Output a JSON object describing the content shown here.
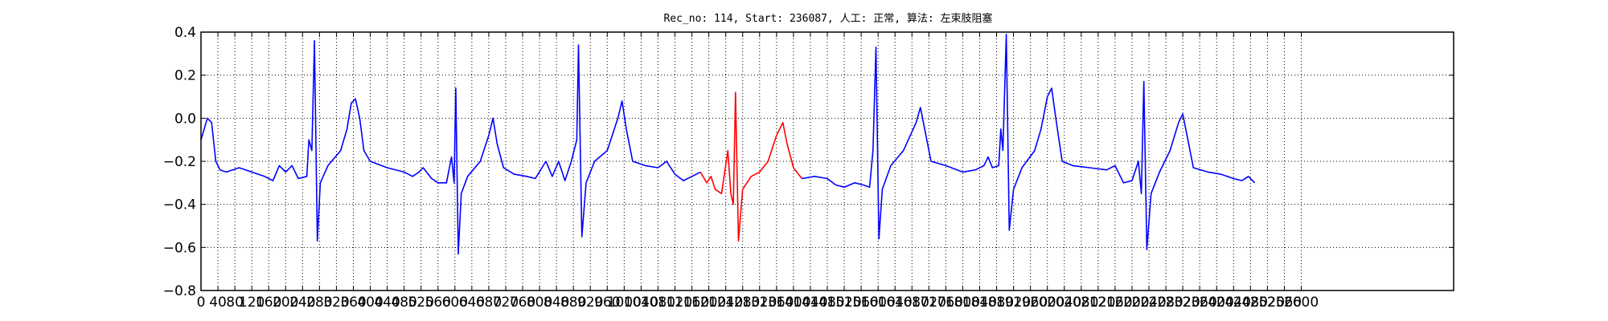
{
  "chart_data": {
    "type": "line",
    "title": "Rec_no: 114, Start: 236087, 人工: 正常, 算法: 左束肢阻塞",
    "xlabel": "",
    "ylabel": "",
    "xlim": [
      0,
      2960
    ],
    "ylim": [
      -0.8,
      0.4
    ],
    "grid": true,
    "x_tick_values": [
      0,
      40,
      80,
      120,
      160,
      200,
      240,
      280,
      320,
      360,
      400,
      440,
      480,
      520,
      560,
      600,
      640,
      680,
      720,
      760,
      800,
      840,
      880,
      920,
      960,
      1000,
      1040,
      1080,
      1120,
      1160,
      1200,
      1240,
      1280,
      1320,
      1360,
      1400,
      1440,
      1480,
      1520,
      1560,
      1600,
      1640,
      1680,
      1720,
      1760,
      1800,
      1840,
      1880,
      1920,
      1960,
      2000,
      2040,
      2080,
      2120,
      2160,
      2200,
      2240,
      2280,
      2320,
      2360,
      2400,
      2440,
      2480,
      2520,
      2560,
      2600
    ],
    "y_tick_values": [
      0.4,
      0.2,
      0.0,
      -0.2,
      -0.4,
      -0.6,
      -0.8
    ],
    "y_tick_labels": [
      "0.4",
      "0.2",
      "0.0",
      "−0.2",
      "−0.4",
      "−0.6",
      "−0.8"
    ],
    "highlight_range": [
      1180,
      1420
    ],
    "series": [
      {
        "color": "#0000ff",
        "points": [
          [
            0,
            -0.1
          ],
          [
            15,
            0.0
          ],
          [
            25,
            -0.02
          ],
          [
            35,
            -0.2
          ],
          [
            45,
            -0.24
          ],
          [
            60,
            -0.25
          ],
          [
            90,
            -0.23
          ],
          [
            120,
            -0.25
          ],
          [
            150,
            -0.27
          ],
          [
            170,
            -0.29
          ],
          [
            185,
            -0.22
          ],
          [
            200,
            -0.25
          ],
          [
            215,
            -0.22
          ],
          [
            230,
            -0.28
          ],
          [
            250,
            -0.27
          ],
          [
            255,
            -0.1
          ],
          [
            262,
            -0.15
          ],
          [
            268,
            0.36
          ],
          [
            275,
            -0.57
          ],
          [
            282,
            -0.3
          ],
          [
            300,
            -0.22
          ],
          [
            330,
            -0.15
          ],
          [
            345,
            -0.05
          ],
          [
            355,
            0.07
          ],
          [
            365,
            0.09
          ],
          [
            375,
            0.0
          ],
          [
            385,
            -0.15
          ],
          [
            400,
            -0.2
          ],
          [
            440,
            -0.23
          ],
          [
            480,
            -0.25
          ],
          [
            500,
            -0.27
          ],
          [
            515,
            -0.25
          ],
          [
            525,
            -0.23
          ],
          [
            545,
            -0.28
          ],
          [
            560,
            -0.3
          ],
          [
            580,
            -0.3
          ],
          [
            592,
            -0.18
          ],
          [
            598,
            -0.3
          ],
          [
            602,
            0.14
          ],
          [
            608,
            -0.63
          ],
          [
            615,
            -0.35
          ],
          [
            630,
            -0.27
          ],
          [
            660,
            -0.2
          ],
          [
            680,
            -0.08
          ],
          [
            690,
            0.0
          ],
          [
            700,
            -0.12
          ],
          [
            715,
            -0.23
          ],
          [
            740,
            -0.26
          ],
          [
            770,
            -0.27
          ],
          [
            790,
            -0.28
          ],
          [
            815,
            -0.2
          ],
          [
            830,
            -0.27
          ],
          [
            845,
            -0.2
          ],
          [
            860,
            -0.29
          ],
          [
            875,
            -0.2
          ],
          [
            888,
            -0.1
          ],
          [
            892,
            0.34
          ],
          [
            900,
            -0.55
          ],
          [
            910,
            -0.3
          ],
          [
            930,
            -0.2
          ],
          [
            960,
            -0.15
          ],
          [
            985,
            0.0
          ],
          [
            995,
            0.08
          ],
          [
            1005,
            -0.05
          ],
          [
            1020,
            -0.2
          ],
          [
            1050,
            -0.22
          ],
          [
            1080,
            -0.23
          ],
          [
            1100,
            -0.2
          ],
          [
            1120,
            -0.26
          ],
          [
            1140,
            -0.29
          ],
          [
            1160,
            -0.27
          ],
          [
            1180,
            -0.25
          ]
        ]
      },
      {
        "color": "#ff0000",
        "points": [
          [
            1180,
            -0.25
          ],
          [
            1195,
            -0.3
          ],
          [
            1205,
            -0.27
          ],
          [
            1215,
            -0.33
          ],
          [
            1230,
            -0.35
          ],
          [
            1245,
            -0.15
          ],
          [
            1252,
            -0.35
          ],
          [
            1258,
            -0.4
          ],
          [
            1263,
            0.12
          ],
          [
            1270,
            -0.57
          ],
          [
            1280,
            -0.33
          ],
          [
            1300,
            -0.27
          ],
          [
            1320,
            -0.25
          ],
          [
            1340,
            -0.2
          ],
          [
            1360,
            -0.08
          ],
          [
            1375,
            -0.02
          ],
          [
            1385,
            -0.12
          ],
          [
            1400,
            -0.23
          ],
          [
            1420,
            -0.28
          ]
        ]
      },
      {
        "color": "#0000ff",
        "points": [
          [
            1420,
            -0.28
          ],
          [
            1450,
            -0.27
          ],
          [
            1480,
            -0.28
          ],
          [
            1500,
            -0.31
          ],
          [
            1520,
            -0.32
          ],
          [
            1545,
            -0.3
          ],
          [
            1565,
            -0.31
          ],
          [
            1580,
            -0.32
          ],
          [
            1588,
            -0.15
          ],
          [
            1595,
            0.33
          ],
          [
            1602,
            -0.56
          ],
          [
            1610,
            -0.33
          ],
          [
            1630,
            -0.22
          ],
          [
            1660,
            -0.15
          ],
          [
            1690,
            -0.02
          ],
          [
            1700,
            0.05
          ],
          [
            1710,
            -0.05
          ],
          [
            1725,
            -0.2
          ],
          [
            1760,
            -0.22
          ],
          [
            1800,
            -0.25
          ],
          [
            1830,
            -0.24
          ],
          [
            1850,
            -0.22
          ],
          [
            1860,
            -0.18
          ],
          [
            1870,
            -0.23
          ],
          [
            1885,
            -0.22
          ],
          [
            1890,
            -0.05
          ],
          [
            1895,
            -0.15
          ],
          [
            1903,
            0.39
          ],
          [
            1910,
            -0.52
          ],
          [
            1920,
            -0.33
          ],
          [
            1940,
            -0.23
          ],
          [
            1970,
            -0.15
          ],
          [
            1985,
            -0.05
          ],
          [
            2000,
            0.1
          ],
          [
            2010,
            0.14
          ],
          [
            2020,
            0.0
          ],
          [
            2035,
            -0.2
          ],
          [
            2060,
            -0.22
          ],
          [
            2100,
            -0.23
          ],
          [
            2140,
            -0.24
          ],
          [
            2160,
            -0.22
          ],
          [
            2180,
            -0.3
          ],
          [
            2200,
            -0.29
          ],
          [
            2215,
            -0.2
          ],
          [
            2222,
            -0.35
          ],
          [
            2228,
            0.17
          ],
          [
            2235,
            -0.61
          ],
          [
            2245,
            -0.35
          ],
          [
            2265,
            -0.25
          ],
          [
            2290,
            -0.15
          ],
          [
            2310,
            -0.02
          ],
          [
            2320,
            0.02
          ],
          [
            2330,
            -0.08
          ],
          [
            2345,
            -0.23
          ],
          [
            2380,
            -0.25
          ],
          [
            2410,
            -0.26
          ],
          [
            2440,
            -0.28
          ],
          [
            2460,
            -0.29
          ],
          [
            2475,
            -0.27
          ],
          [
            2490,
            -0.3
          ]
        ]
      }
    ]
  }
}
